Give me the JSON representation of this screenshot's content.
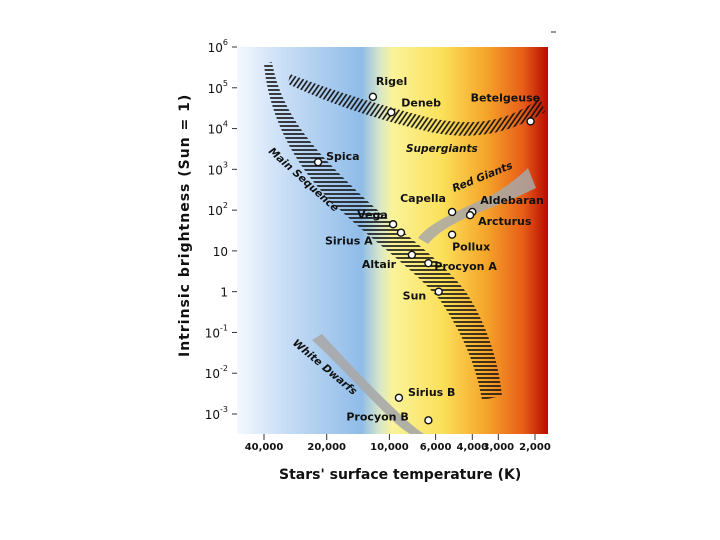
{
  "chart_data": {
    "type": "scatter",
    "title": "",
    "xlabel": "Stars' surface temperature (K)",
    "ylabel": "Intrinsic  brightness  (Sun = 1)",
    "x_scale": "log-reversed",
    "y_scale": "log",
    "xlim": [
      50000,
      1700
    ],
    "ylim": [
      0.0005,
      1000000
    ],
    "x_ticks": [
      {
        "value": 40000,
        "label": "40,000"
      },
      {
        "value": 20000,
        "label": "20,000"
      },
      {
        "value": 10000,
        "label": "10,000"
      },
      {
        "value": 6000,
        "label": "6,000"
      },
      {
        "value": 4000,
        "label": "4,000"
      },
      {
        "value": 3000,
        "label": "3,000"
      },
      {
        "value": 2000,
        "label": "2,000"
      }
    ],
    "y_ticks": [
      {
        "value": 1000000,
        "base": "10",
        "exp": "6"
      },
      {
        "value": 100000,
        "base": "10",
        "exp": "5"
      },
      {
        "value": 10000,
        "base": "10",
        "exp": "4"
      },
      {
        "value": 1000,
        "base": "10",
        "exp": "3"
      },
      {
        "value": 100,
        "base": "10",
        "exp": "2"
      },
      {
        "value": 10,
        "base": "10",
        "exp": ""
      },
      {
        "value": 1,
        "base": "1",
        "exp": ""
      },
      {
        "value": 0.1,
        "base": "10",
        "exp": "-1"
      },
      {
        "value": 0.01,
        "base": "10",
        "exp": "-2"
      },
      {
        "value": 0.001,
        "base": "10",
        "exp": "-3"
      }
    ],
    "points": [
      {
        "name": "Rigel",
        "x": 12000,
        "y": 60000
      },
      {
        "name": "Deneb",
        "x": 9800,
        "y": 25000
      },
      {
        "name": "Betelgeuse",
        "x": 2100,
        "y": 15000
      },
      {
        "name": "Spica",
        "x": 22000,
        "y": 1500
      },
      {
        "name": "Capella",
        "x": 5000,
        "y": 90
      },
      {
        "name": "Aldebaran",
        "x": 4000,
        "y": 90
      },
      {
        "name": "Arcturus",
        "x": 4100,
        "y": 75
      },
      {
        "name": "Vega",
        "x": 9600,
        "y": 45
      },
      {
        "name": "Sirius A",
        "x": 8800,
        "y": 28
      },
      {
        "name": "Pollux",
        "x": 5000,
        "y": 25
      },
      {
        "name": "Altair",
        "x": 7800,
        "y": 8
      },
      {
        "name": "Procyon A",
        "x": 6500,
        "y": 5
      },
      {
        "name": "Sun",
        "x": 5800,
        "y": 1
      },
      {
        "name": "Sirius B",
        "x": 9000,
        "y": 0.0025
      },
      {
        "name": "Procyon B",
        "x": 6500,
        "y": 0.0007
      }
    ],
    "regions": [
      {
        "name": "Main Sequence",
        "type": "band-hatched"
      },
      {
        "name": "Supergiants",
        "type": "band-hatched"
      },
      {
        "name": "Red Giants",
        "type": "band-gray"
      },
      {
        "name": "White Dwarfs",
        "type": "band-gray"
      }
    ],
    "grid": false,
    "legend": "none"
  }
}
